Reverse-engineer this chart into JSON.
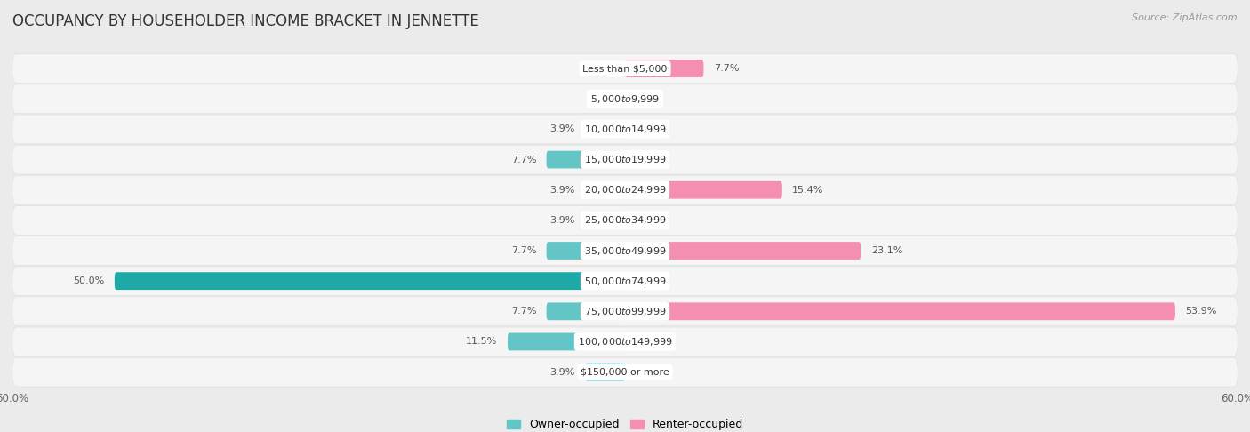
{
  "title": "OCCUPANCY BY HOUSEHOLDER INCOME BRACKET IN JENNETTE",
  "source": "Source: ZipAtlas.com",
  "categories": [
    "Less than $5,000",
    "$5,000 to $9,999",
    "$10,000 to $14,999",
    "$15,000 to $19,999",
    "$20,000 to $24,999",
    "$25,000 to $34,999",
    "$35,000 to $49,999",
    "$50,000 to $74,999",
    "$75,000 to $99,999",
    "$100,000 to $149,999",
    "$150,000 or more"
  ],
  "owner_values": [
    0.0,
    0.0,
    3.9,
    7.7,
    3.9,
    3.9,
    7.7,
    50.0,
    7.7,
    11.5,
    3.9
  ],
  "renter_values": [
    7.7,
    0.0,
    0.0,
    0.0,
    15.4,
    0.0,
    23.1,
    0.0,
    53.9,
    0.0,
    0.0
  ],
  "owner_color": "#63c5c5",
  "renter_color": "#f48fb1",
  "owner_color_dark": "#1fa8a8",
  "background_color": "#ebebeb",
  "row_bg_color": "#f5f5f5",
  "row_separator_color": "#e0e0e0",
  "axis_limit": 60.0,
  "bar_height": 0.58,
  "title_fontsize": 12,
  "label_fontsize": 8,
  "category_fontsize": 8,
  "legend_fontsize": 9,
  "source_fontsize": 8
}
